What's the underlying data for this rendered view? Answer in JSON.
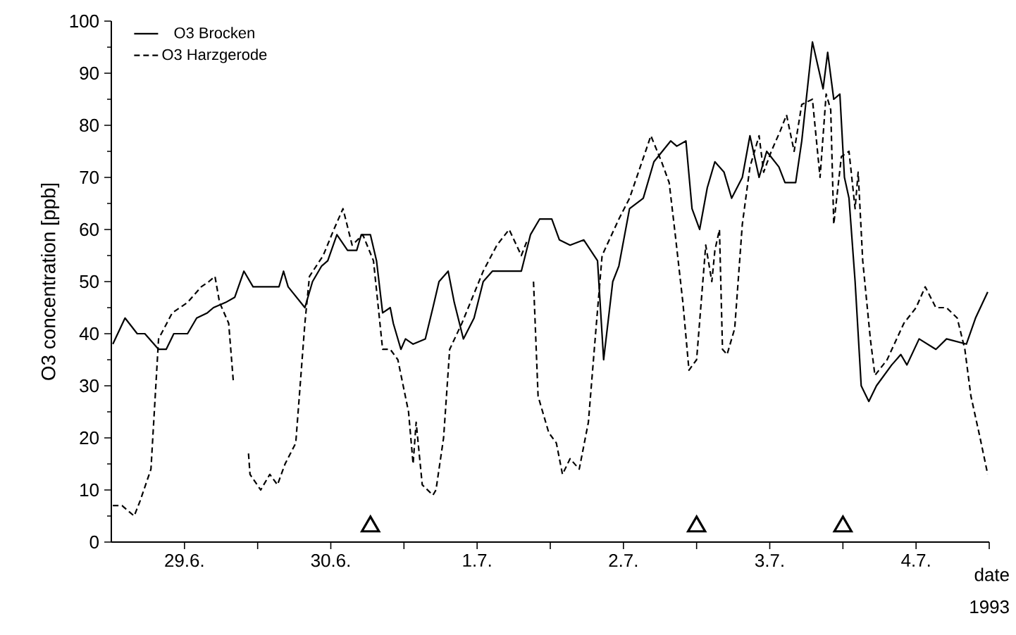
{
  "chart_data": {
    "type": "line",
    "xlabel": "date",
    "ylabel": "O3 concentration [ppb]",
    "annotations": [
      "1993"
    ],
    "xlim": [
      "1993-06-29T00:00",
      "1993-07-05T00:00"
    ],
    "ylim": [
      0,
      100
    ],
    "xticks": [
      {
        "value": "1993-06-29T12:00",
        "label": "29.6."
      },
      {
        "value": "1993-06-30T00:00",
        "label": null
      },
      {
        "value": "1993-06-30T12:00",
        "label": "30.6."
      },
      {
        "value": "1993-07-01T00:00",
        "label": null
      },
      {
        "value": "1993-07-01T12:00",
        "label": "1.7."
      },
      {
        "value": "1993-07-02T00:00",
        "label": null
      },
      {
        "value": "1993-07-02T12:00",
        "label": "2.7."
      },
      {
        "value": "1993-07-03T00:00",
        "label": null
      },
      {
        "value": "1993-07-03T12:00",
        "label": "3.7."
      },
      {
        "value": "1993-07-04T00:00",
        "label": null
      },
      {
        "value": "1993-07-04T12:00",
        "label": "4.7."
      },
      {
        "value": "1993-07-05T00:00",
        "label": null
      }
    ],
    "yticks": [
      0,
      10,
      20,
      30,
      40,
      50,
      60,
      70,
      80,
      90,
      100
    ],
    "legend": "top left",
    "series": [
      {
        "name": "O3 Brocken",
        "color": "#000000",
        "line_style": "solid",
        "x": [
          "1993-06-29T00:15",
          "1993-06-29T02:15",
          "1993-06-29T04:15",
          "1993-06-29T05:30",
          "1993-06-29T07:45",
          "1993-06-29T09:00",
          "1993-06-29T10:15",
          "1993-06-29T12:30",
          "1993-06-29T14:00",
          "1993-06-29T15:45",
          "1993-06-29T16:45",
          "1993-06-29T18:45",
          "1993-06-29T20:15",
          "1993-06-29T21:45",
          "1993-06-29T23:15",
          "1993-06-30T01:30",
          "1993-06-30T03:30",
          "1993-06-30T04:15",
          "1993-06-30T05:00",
          "1993-06-30T07:45",
          "1993-06-30T09:00",
          "1993-06-30T10:30",
          "1993-06-30T11:30",
          "1993-06-30T13:00",
          "1993-06-30T14:45",
          "1993-06-30T16:15",
          "1993-06-30T17:00",
          "1993-06-30T18:30",
          "1993-06-30T19:30",
          "1993-06-30T20:30",
          "1993-06-30T21:45",
          "1993-06-30T22:15",
          "1993-06-30T23:30",
          "1993-07-01T00:15",
          "1993-07-01T01:30",
          "1993-07-01T03:30",
          "1993-07-01T04:45",
          "1993-07-01T05:45",
          "1993-07-01T07:15",
          "1993-07-01T08:15",
          "1993-07-01T09:45",
          "1993-07-01T11:30",
          "1993-07-01T13:00",
          "1993-07-01T14:30",
          "1993-07-01T16:45",
          "1993-07-01T19:15",
          "1993-07-01T20:45",
          "1993-07-01T22:15",
          "1993-07-02T00:15",
          "1993-07-02T01:30",
          "1993-07-02T03:15",
          "1993-07-02T05:30",
          "1993-07-02T07:45",
          "1993-07-02T08:45",
          "1993-07-02T10:15",
          "1993-07-02T11:15",
          "1993-07-02T13:00",
          "1993-07-02T15:15",
          "1993-07-02T17:00",
          "1993-07-02T19:45",
          "1993-07-02T20:45",
          "1993-07-02T22:15",
          "1993-07-02T23:15",
          "1993-07-03T00:30",
          "1993-07-03T01:45",
          "1993-07-03T03:00",
          "1993-07-03T04:30",
          "1993-07-03T05:45",
          "1993-07-03T07:30",
          "1993-07-03T08:45",
          "1993-07-03T10:15",
          "1993-07-03T11:30",
          "1993-07-03T13:30",
          "1993-07-03T14:30",
          "1993-07-03T16:15",
          "1993-07-03T17:15",
          "1993-07-03T19:00",
          "1993-07-03T20:45",
          "1993-07-03T21:30",
          "1993-07-03T22:30",
          "1993-07-03T23:30",
          "1993-07-04T00:15",
          "1993-07-04T01:00",
          "1993-07-04T02:00",
          "1993-07-04T03:00",
          "1993-07-04T04:15",
          "1993-07-04T05:30",
          "1993-07-04T08:00",
          "1993-07-04T09:30",
          "1993-07-04T10:30",
          "1993-07-04T12:30",
          "1993-07-04T15:15",
          "1993-07-04T17:00",
          "1993-07-04T20:15",
          "1993-07-04T21:45",
          "1993-07-04T23:45"
        ],
        "values": [
          38,
          43,
          40,
          40,
          37,
          37,
          40,
          40,
          43,
          44,
          45,
          46,
          47,
          52,
          49,
          49,
          49,
          52,
          49,
          45,
          50,
          53,
          54,
          59,
          56,
          56,
          59,
          59,
          54,
          44,
          45,
          42,
          37,
          39,
          38,
          39,
          45,
          50,
          52,
          46,
          39,
          43,
          50,
          52,
          52,
          52,
          59,
          62,
          62,
          58,
          57,
          58,
          54,
          35,
          50,
          53,
          64,
          66,
          73,
          77,
          76,
          77,
          64,
          60,
          68,
          73,
          71,
          66,
          70,
          78,
          70,
          75,
          72,
          69,
          69,
          77,
          96,
          87,
          94,
          85,
          86,
          70,
          66,
          50,
          30,
          27,
          30,
          34,
          36,
          34,
          39,
          37,
          39,
          38,
          43,
          48
        ]
      },
      {
        "name": "O3 Harzgerode",
        "color": "#000000",
        "line_style": "dashed",
        "x": [
          "1993-06-29T00:15",
          "1993-06-29T01:45",
          "1993-06-29T03:45",
          "1993-06-29T04:45",
          "1993-06-29T06:30",
          "1993-06-29T07:30",
          "1993-06-29T07:45",
          "1993-06-29T10:00",
          "1993-06-29T12:30",
          "1993-06-29T14:45",
          "1993-06-29T16:00",
          "1993-06-29T17:00",
          "1993-06-29T17:45",
          "1993-06-29T19:15",
          "1993-06-29T20:00",
          "1993-06-29T22:00",
          "1993-06-29T22:30",
          "1993-06-29T22:45",
          "1993-06-30T00:30",
          "1993-06-30T02:00",
          "1993-06-30T03:15",
          "1993-06-30T04:30",
          "1993-06-30T06:15",
          "1993-06-30T07:45",
          "1993-06-30T08:30",
          "1993-06-30T10:45",
          "1993-06-30T12:30",
          "1993-06-30T14:00",
          "1993-06-30T15:30",
          "1993-06-30T17:15",
          "1993-06-30T19:00",
          "1993-06-30T20:30",
          "1993-06-30T21:45",
          "1993-06-30T23:00",
          "1993-07-01T00:45",
          "1993-07-01T01:30",
          "1993-07-01T02:00",
          "1993-07-01T03:00",
          "1993-07-01T04:45",
          "1993-07-01T05:15",
          "1993-07-01T06:30",
          "1993-07-01T07:30",
          "1993-07-01T09:30",
          "1993-07-01T13:00",
          "1993-07-01T15:15",
          "1993-07-01T17:15",
          "1993-07-01T19:15",
          "1993-07-01T20:15",
          "1993-07-01T21:00",
          "1993-07-01T21:15",
          "1993-07-01T22:00",
          "1993-07-01T23:45",
          "1993-07-02T01:00",
          "1993-07-02T02:00",
          "1993-07-02T03:15",
          "1993-07-02T04:45",
          "1993-07-02T06:15",
          "1993-07-02T07:30",
          "1993-07-02T08:30",
          "1993-07-02T11:15",
          "1993-07-02T13:00",
          "1993-07-02T14:45",
          "1993-07-02T16:30",
          "1993-07-02T18:15",
          "1993-07-02T19:30",
          "1993-07-02T20:30",
          "1993-07-02T21:45",
          "1993-07-02T22:45",
          "1993-07-03T00:00",
          "1993-07-03T00:45",
          "1993-07-03T01:30",
          "1993-07-03T02:30",
          "1993-07-03T03:00",
          "1993-07-03T03:45",
          "1993-07-03T04:15",
          "1993-07-03T05:00",
          "1993-07-03T06:15",
          "1993-07-03T07:30",
          "1993-07-03T08:45",
          "1993-07-03T10:15",
          "1993-07-03T11:00",
          "1993-07-03T12:15",
          "1993-07-03T13:45",
          "1993-07-03T14:45",
          "1993-07-03T16:00",
          "1993-07-03T17:15",
          "1993-07-03T19:00",
          "1993-07-03T20:15",
          "1993-07-03T21:15",
          "1993-07-03T22:00",
          "1993-07-03T22:30",
          "1993-07-03T23:45",
          "1993-07-04T01:00",
          "1993-07-04T02:00",
          "1993-07-04T02:30",
          "1993-07-04T03:15",
          "1993-07-04T04:30",
          "1993-07-04T05:15",
          "1993-07-04T07:15",
          "1993-07-04T10:00",
          "1993-07-04T12:00",
          "1993-07-04T13:30",
          "1993-07-04T15:15",
          "1993-07-04T17:00",
          "1993-07-04T18:45",
          "1993-07-04T20:00",
          "1993-07-04T21:00",
          "1993-07-04T22:30",
          "1993-07-04T23:45"
        ],
        "values": [
          7,
          7,
          5,
          8,
          14,
          34,
          39,
          44,
          46,
          49,
          50,
          51,
          46,
          42,
          31,
          null,
          17,
          13,
          10,
          13,
          11,
          15,
          19,
          42,
          51,
          55,
          60,
          64,
          57,
          59,
          54,
          37,
          37,
          35,
          25,
          15,
          23,
          11,
          9,
          10,
          20,
          37,
          42,
          52,
          57,
          60,
          55,
          58,
          null,
          50,
          28,
          21,
          19,
          13,
          16,
          14,
          23,
          41,
          55,
          62,
          66,
          72,
          78,
          73,
          69,
          59,
          46,
          33,
          35,
          46,
          57,
          50,
          56,
          60,
          37,
          36,
          41,
          61,
          72,
          78,
          71,
          75,
          79,
          82,
          75,
          84,
          85,
          70,
          86,
          83,
          61,
          74,
          75,
          64,
          71,
          54,
          39,
          32,
          35,
          42,
          45,
          49,
          45,
          45,
          43,
          37,
          28,
          20,
          13
        ]
      },
      {
        "type": "scatter",
        "color": "#000000",
        "marker": "triangle",
        "x": [
          "1993-06-30T18:30",
          "1993-07-03T00:00",
          "1993-07-04T00:00"
        ],
        "values": [
          3,
          3,
          3
        ]
      }
    ]
  }
}
